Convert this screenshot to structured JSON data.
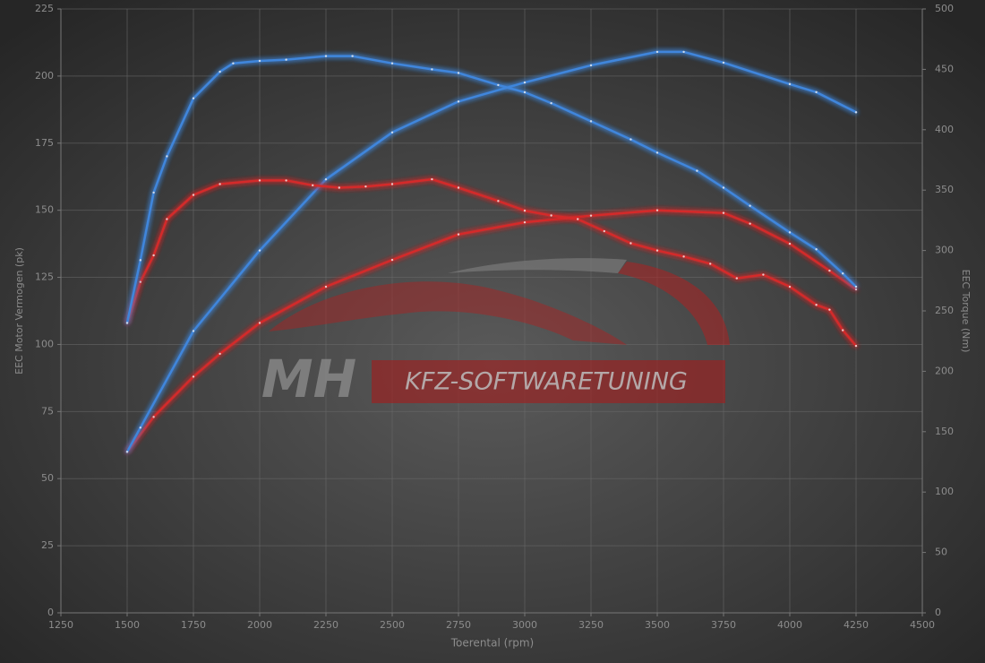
{
  "chart_data": {
    "type": "line",
    "watermark": [
      "MH",
      "KFZ-SOFTWARETUNING"
    ],
    "x_label": "Toerental (rpm)",
    "y_label": "EEC Motor Vermogen (pk)",
    "y2_label": "EEC Torque (Nm)",
    "xlim": [
      1250,
      4500
    ],
    "xticks": [
      1250,
      1500,
      1750,
      2000,
      2250,
      2500,
      2750,
      3000,
      3250,
      3500,
      3750,
      4000,
      4250,
      4500
    ],
    "ylim": [
      0,
      225
    ],
    "yticks": [
      0,
      25,
      50,
      75,
      100,
      125,
      150,
      175,
      200,
      225
    ],
    "y2lim": [
      0,
      500
    ],
    "y2ticks": [
      0,
      50,
      100,
      150,
      200,
      250,
      300,
      350,
      400,
      450,
      500
    ],
    "grid": true,
    "series": [
      {
        "color": "#d42a2a",
        "axis": "y",
        "x": [
          1500,
          1600,
          1750,
          1850,
          2000,
          2250,
          2500,
          2750,
          3000,
          3250,
          3500,
          3750,
          3850,
          4000,
          4150,
          4250
        ],
        "values": [
          60,
          73,
          88,
          96.5,
          108,
          121.5,
          131.5,
          141,
          145.5,
          148,
          150,
          149,
          145,
          137.5,
          127.5,
          120.5
        ]
      },
      {
        "color": "#3f86dc",
        "axis": "y",
        "x": [
          1500,
          1550,
          1750,
          2000,
          2250,
          2500,
          2750,
          3000,
          3250,
          3500,
          3600,
          3750,
          4000,
          4100,
          4250
        ],
        "values": [
          60,
          69,
          105,
          135,
          161.5,
          179,
          190.5,
          197.6,
          204,
          209,
          209,
          205,
          197,
          194,
          186.5
        ]
      },
      {
        "color": "#d42a2a",
        "axis": "y2",
        "x": [
          1500,
          1550,
          1600,
          1650,
          1750,
          1850,
          2000,
          2100,
          2200,
          2300,
          2400,
          2500,
          2650,
          2750,
          2900,
          3000,
          3100,
          3200,
          3300,
          3400,
          3500,
          3600,
          3700,
          3800,
          3900,
          4000,
          4100,
          4150,
          4200,
          4250
        ],
        "values": [
          240,
          274,
          296,
          326,
          346,
          355,
          358,
          358,
          354,
          352,
          353,
          355,
          359,
          352,
          341,
          333,
          329,
          326,
          316,
          306,
          300,
          295,
          289,
          277,
          280,
          270,
          255,
          251,
          234,
          221
        ]
      },
      {
        "color": "#3f86dc",
        "axis": "y2",
        "x": [
          1500,
          1550,
          1600,
          1650,
          1750,
          1850,
          1900,
          2000,
          2100,
          2250,
          2350,
          2500,
          2650,
          2750,
          2900,
          3000,
          3100,
          3250,
          3400,
          3500,
          3650,
          3750,
          3850,
          4000,
          4100,
          4200,
          4250
        ],
        "values": [
          240,
          292,
          348,
          378,
          426,
          448,
          455,
          457,
          458,
          461,
          461,
          455,
          450,
          447,
          437,
          431,
          422,
          407,
          392,
          381,
          366,
          352,
          337,
          315,
          301,
          281,
          270
        ]
      }
    ]
  }
}
